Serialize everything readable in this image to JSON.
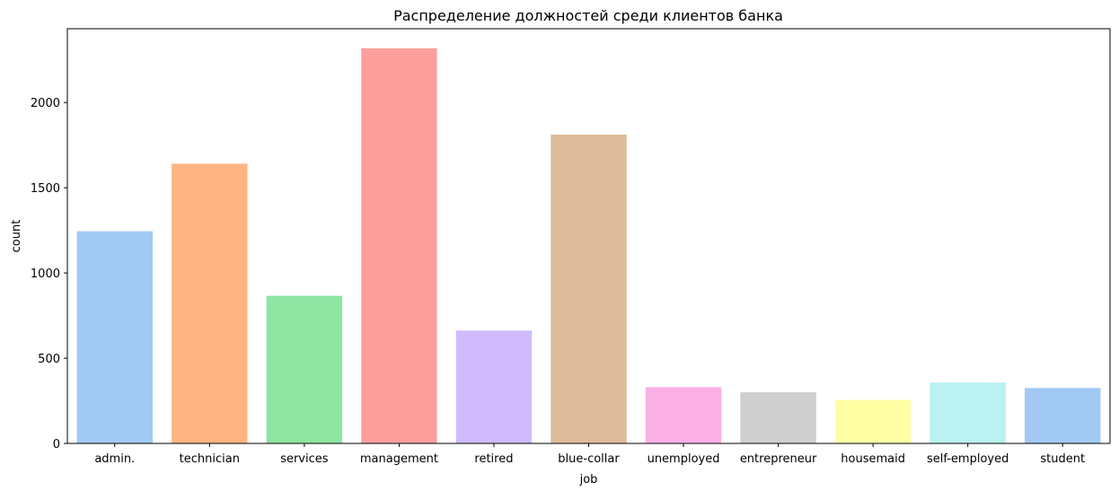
{
  "chart_data": {
    "type": "bar",
    "title": "Распределение должностей среди клиентов банка",
    "xlabel": "job",
    "ylabel": "count",
    "categories": [
      "admin.",
      "technician",
      "services",
      "management",
      "retired",
      "blue-collar",
      "unemployed",
      "entrepreneur",
      "housemaid",
      "self-employed",
      "student"
    ],
    "values": [
      1245,
      1641,
      866,
      2318,
      662,
      1812,
      330,
      300,
      255,
      357,
      325
    ],
    "colors": [
      "#a1c9f4",
      "#ffb482",
      "#8de5a1",
      "#ff9f9b",
      "#d0bbff",
      "#debb9b",
      "#fab0e4",
      "#cfcfcf",
      "#fffea3",
      "#b9f2f0",
      "#a1c9f4"
    ],
    "ylim": [
      0,
      2433
    ],
    "yticks": [
      0,
      500,
      1000,
      1500,
      2000
    ],
    "grid": false
  }
}
